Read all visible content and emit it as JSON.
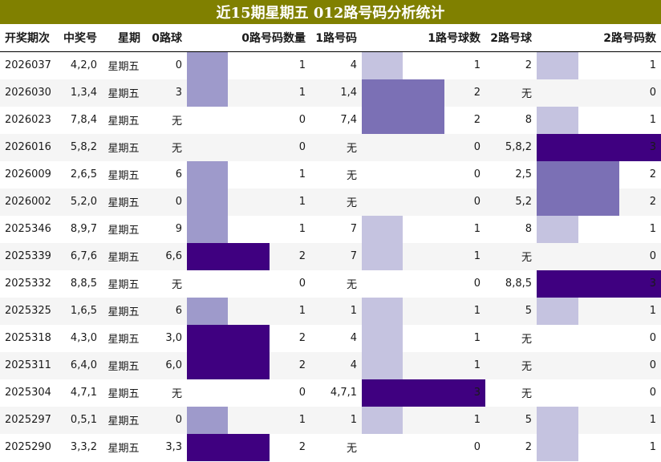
{
  "title": "近15期星期五 012路号码分析统计",
  "columns": [
    "开奖期次",
    "中奖号",
    "星期",
    "0路球",
    "0路号码数量",
    "1路号码",
    "1路号球数",
    "2路号球",
    "2路号码数"
  ],
  "colors": {
    "header_bg": "#808000",
    "level1": "#c5c3e0",
    "level1_zero": "#9e9acb",
    "level2": "#7b70b5",
    "level3": "#3f0080"
  },
  "chart_data": {
    "type": "table",
    "title": "近15期星期五 012路号码分析统计",
    "max_count": 3,
    "rows": [
      {
        "period": "2026037",
        "numbers": "4,2,0",
        "weekday": "星期五",
        "r0": "0",
        "c0": 1,
        "r1": "4",
        "c1": 1,
        "r2": "2",
        "c2": 1
      },
      {
        "period": "2026030",
        "numbers": "1,3,4",
        "weekday": "星期五",
        "r0": "3",
        "c0": 1,
        "r1": "1,4",
        "c1": 2,
        "r2": "无",
        "c2": 0
      },
      {
        "period": "2026023",
        "numbers": "7,8,4",
        "weekday": "星期五",
        "r0": "无",
        "c0": 0,
        "r1": "7,4",
        "c1": 2,
        "r2": "8",
        "c2": 1
      },
      {
        "period": "2026016",
        "numbers": "5,8,2",
        "weekday": "星期五",
        "r0": "无",
        "c0": 0,
        "r1": "无",
        "c1": 0,
        "r2": "5,8,2",
        "c2": 3
      },
      {
        "period": "2026009",
        "numbers": "2,6,5",
        "weekday": "星期五",
        "r0": "6",
        "c0": 1,
        "r1": "无",
        "c1": 0,
        "r2": "2,5",
        "c2": 2
      },
      {
        "period": "2026002",
        "numbers": "5,2,0",
        "weekday": "星期五",
        "r0": "0",
        "c0": 1,
        "r1": "无",
        "c1": 0,
        "r2": "5,2",
        "c2": 2
      },
      {
        "period": "2025346",
        "numbers": "8,9,7",
        "weekday": "星期五",
        "r0": "9",
        "c0": 1,
        "r1": "7",
        "c1": 1,
        "r2": "8",
        "c2": 1
      },
      {
        "period": "2025339",
        "numbers": "6,7,6",
        "weekday": "星期五",
        "r0": "6,6",
        "c0": 2,
        "r1": "7",
        "c1": 1,
        "r2": "无",
        "c2": 0
      },
      {
        "period": "2025332",
        "numbers": "8,8,5",
        "weekday": "星期五",
        "r0": "无",
        "c0": 0,
        "r1": "无",
        "c1": 0,
        "r2": "8,8,5",
        "c2": 3
      },
      {
        "period": "2025325",
        "numbers": "1,6,5",
        "weekday": "星期五",
        "r0": "6",
        "c0": 1,
        "r1": "1",
        "c1": 1,
        "r2": "5",
        "c2": 1
      },
      {
        "period": "2025318",
        "numbers": "4,3,0",
        "weekday": "星期五",
        "r0": "3,0",
        "c0": 2,
        "r1": "4",
        "c1": 1,
        "r2": "无",
        "c2": 0
      },
      {
        "period": "2025311",
        "numbers": "6,4,0",
        "weekday": "星期五",
        "r0": "6,0",
        "c0": 2,
        "r1": "4",
        "c1": 1,
        "r2": "无",
        "c2": 0
      },
      {
        "period": "2025304",
        "numbers": "4,7,1",
        "weekday": "星期五",
        "r0": "无",
        "c0": 0,
        "r1": "4,7,1",
        "c1": 3,
        "r2": "无",
        "c2": 0
      },
      {
        "period": "2025297",
        "numbers": "0,5,1",
        "weekday": "星期五",
        "r0": "0",
        "c0": 1,
        "r1": "1",
        "c1": 1,
        "r2": "5",
        "c2": 1
      },
      {
        "period": "2025290",
        "numbers": "3,3,2",
        "weekday": "星期五",
        "r0": "3,3",
        "c0": 2,
        "r1": "无",
        "c1": 0,
        "r2": "2",
        "c2": 1
      }
    ]
  }
}
